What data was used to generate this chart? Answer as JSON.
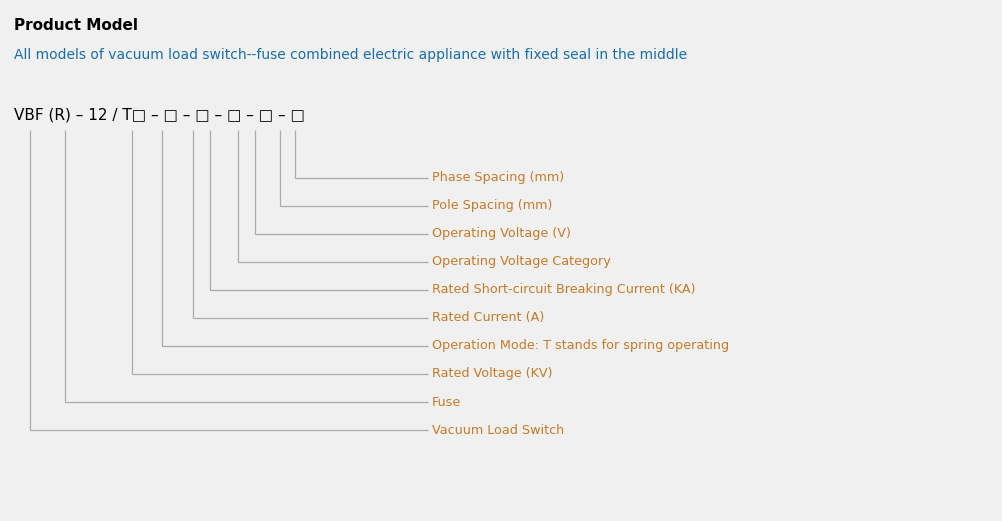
{
  "title": "Product Model",
  "subtitle": "All models of vacuum load switch--fuse combined electric appliance with fixed seal in the middle",
  "model_label": "VBF (R) – 12 / T□ – □ – □ – □ – □ – □",
  "title_color": "#000000",
  "subtitle_color": "#1a6ea8",
  "model_color": "#000000",
  "line_color": "#aaaaaa",
  "label_color": "#c47b2a",
  "bg_color": "#f0f0f0",
  "labels": [
    "Phase Spacing (mm)",
    "Pole Spacing (mm)",
    "Operating Voltage (V)",
    "Operating Voltage Category",
    "Rated Short-circuit Breaking Current (KA)",
    "Rated Current (A)",
    "Operation Mode: T stands for spring operating",
    "Rated Voltage (KV)",
    "Fuse",
    "Vacuum Load Switch"
  ],
  "fig_width": 10.02,
  "fig_height": 5.21
}
